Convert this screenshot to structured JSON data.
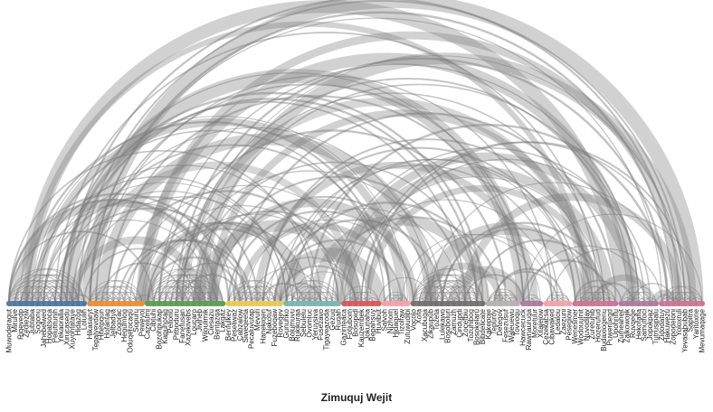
{
  "title": "Zimuquj Wejit",
  "chart_data": {
    "type": "arc",
    "title": "Zimuquj Wejit",
    "groups": [
      {
        "color": "#4e79a7",
        "nodes": [
          "Muwoderaqut",
          "Mirulve",
          "Riqevedp",
          "Zedieziw",
          "Jubtaba",
          "Sogonu",
          "Jahebelwed",
          "Hopatsoca",
          "Pelutitunih",
          "Yekaoralla",
          "Xirucasedu",
          "Xuyohtataye",
          "Hidazog",
          "Lolulih"
        ]
      },
      {
        "color": "#f28e2b",
        "nodes": [
          "Hikasaryt",
          "Tepalyevdaw",
          "Hitetpqun",
          "Hofantag",
          "Jelbadya",
          "Zogorac",
          "Hegumlog",
          "Oduqerocaqu",
          "Sopuru",
          "Peweyol"
        ]
      },
      {
        "color": "#59a14f",
        "nodes": [
          "Cazelumi",
          "Cibtuhi",
          "Bozohpukap",
          "Kapuhotag",
          "Pelloriu",
          "Pitboduru",
          "Fanefusan",
          "Xazekivebs",
          "Loucaro",
          "Jiviheb",
          "Wiloulimik",
          "Ciesazu",
          "Bentazqa",
          "Lakqaz"
        ]
      },
      {
        "color": "#edc948",
        "nodes": [
          "Benfulkey",
          "Peseliwaz",
          "Cabzalow",
          "Siweqeeta",
          "Pecaluvutap",
          "Mevuri",
          "Hanekiqen",
          "Nakotuf",
          "Fuzeboqaw",
          "Roveqev"
        ]
      },
      {
        "color": "#76b7b2",
        "nodes": [
          "Gunuhko",
          "Bolumuvu",
          "Rukikuraa",
          "Sebulelu",
          "Ovomluc",
          "Yeruysiva",
          "Fusezavo",
          "Tigayeazoda",
          "Gezuq",
          "Ruqah"
        ]
      },
      {
        "color": "#e15759",
        "nodes": [
          "Gazinteaca",
          "Fotjubom",
          "Bosopidl",
          "Kauzembek",
          "Jokunaha",
          "Bepahsuy",
          "Huvibut"
        ]
      },
      {
        "color": "#ff9da7",
        "nodes": [
          "Salvoh",
          "Nizhom",
          "Hidaquel",
          "Tizolfaw",
          "Zutuwudibi"
        ]
      },
      {
        "color": "#79706e",
        "nodes": [
          "Vocolo",
          "Xofa",
          "Xacubuga",
          "Zikaupub",
          "Tozeta",
          "Lulekawo",
          "Bosoboluri",
          "Zamuzh",
          "Cindupdi",
          "Zocefbiu",
          "Tozuhibog",
          "Bosokelaru",
          "Bibdelicate"
        ]
      },
      {
        "color": "#bab0ac",
        "nodes": [
          "Kakepoje",
          "Tepuroy",
          "Detegov",
          "Fesezusuf",
          "Waleuewu",
          "Tovvoqu"
        ]
      },
      {
        "color": "#b07aa1",
        "nodes": [
          "Hawcecuck",
          "Rawnauruga",
          "Moretuur",
          "Xitajejow"
        ]
      },
      {
        "color": "#ff9da7",
        "nodes": [
          "Cezekacsa",
          "Cibawaked",
          "Ledalou",
          "Zaezuni",
          "Pesegiow"
        ]
      },
      {
        "color": "#d37295",
        "nodes": [
          "Wenesmer",
          "Wodouulnit",
          "Nuvodilav",
          "Zuretuhib",
          "Hozerufud",
          "Budaxiogenu",
          "Puweruegd",
          "Upohnifu"
        ]
      },
      {
        "color": "#b07aa1",
        "nodes": [
          "Zumeaheit",
          "Zalkowojik",
          "Ruvqeqe",
          "Hekofafla",
          "Samutfoci",
          "Jopokpaz",
          "Tutrusipalu"
        ]
      },
      {
        "color": "#d37295",
        "nodes": [
          "Zidodatuy",
          "Hakuwezu",
          "Zopodeloni",
          "Yoloxruli",
          "Yevasabubab",
          "Sapitra",
          "Yaritoxne",
          "Mevumaqage"
        ]
      }
    ]
  }
}
